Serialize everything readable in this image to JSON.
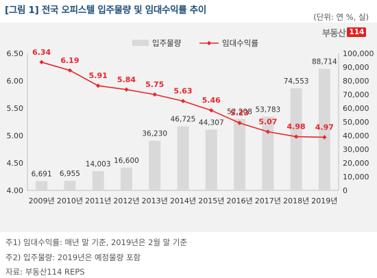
{
  "title": "[그림 1] 전국 오피스텔 입주물량 및 임대수익률 추이",
  "unit_label": "(단위: 연 %, 실)",
  "logo": {
    "text": "부동산",
    "badge": "114"
  },
  "notes": [
    "주1) 임대수익률: 매년 말 기준, 2019년은 2월 말 기준",
    "주2) 입주물량: 2019년은 예정물량 포함",
    "자료: 부동산114 REPS"
  ],
  "chart_data": {
    "type": "bar+line",
    "categories": [
      "2009년",
      "2010년",
      "2011년",
      "2012년",
      "2013년",
      "2014년",
      "2015년",
      "2016년",
      "2017년",
      "2018년",
      "2019년"
    ],
    "series": [
      {
        "name": "입주물량",
        "type": "bar",
        "axis": "right",
        "values": [
          6691,
          6955,
          14003,
          16600,
          36230,
          46725,
          44307,
          52208,
          53783,
          74553,
          88714
        ],
        "labels": [
          "6,691",
          "6,955",
          "14,003",
          "16,600",
          "36,230",
          "46,725",
          "44,307",
          "52,208",
          "53,783",
          "74,553",
          "88,714"
        ],
        "color": "#d9d9d9"
      },
      {
        "name": "임대수익률",
        "type": "line",
        "axis": "left",
        "values": [
          6.34,
          6.19,
          5.91,
          5.84,
          5.75,
          5.63,
          5.46,
          5.23,
          5.07,
          4.98,
          4.97
        ],
        "labels": [
          "6.34",
          "6.19",
          "5.91",
          "5.84",
          "5.75",
          "5.63",
          "5.46",
          "5.23",
          "5.07",
          "4.98",
          "4.97"
        ],
        "color": "#e8262b"
      }
    ],
    "y_left": {
      "min": 4.0,
      "max": 6.5,
      "ticks": [
        "4.00",
        "4.50",
        "5.00",
        "5.50",
        "6.00",
        "6.50"
      ]
    },
    "y_right": {
      "min": 0,
      "max": 100000,
      "ticks": [
        "0",
        "10,000",
        "20,000",
        "30,000",
        "40,000",
        "50,000",
        "60,000",
        "70,000",
        "80,000",
        "90,000",
        "100,000"
      ]
    },
    "legend_position": "top-center",
    "grid": false
  }
}
